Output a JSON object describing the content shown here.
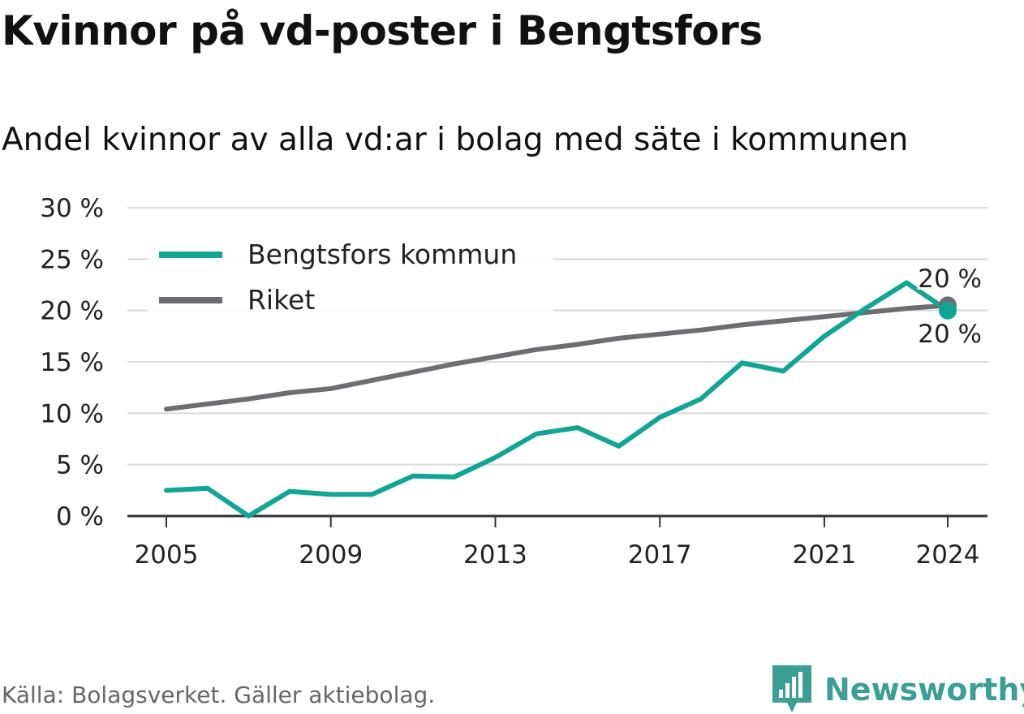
{
  "title": "Kvinnor på vd-poster i Bengtsfors",
  "subtitle": "Andel kvinnor av alla vd:ar i bolag med säte i kommunen",
  "source": "Källa: Bolagsverket. Gäller aktiebolag.",
  "brand": "Newsworthy",
  "colors": {
    "bengtsfors": "#11a596",
    "riket": "#6e6d72",
    "grid": "#d9d9d9",
    "axis": "#333333",
    "brand": "#3b9f96"
  },
  "chart_data": {
    "type": "line",
    "x": [
      2005,
      2006,
      2007,
      2008,
      2009,
      2010,
      2011,
      2012,
      2013,
      2014,
      2015,
      2016,
      2017,
      2018,
      2019,
      2020,
      2021,
      2022,
      2023,
      2024
    ],
    "series": [
      {
        "name": "Bengtsfors kommun",
        "color": "#11a596",
        "values": [
          2.5,
          2.7,
          0.0,
          2.4,
          2.1,
          2.1,
          3.9,
          3.8,
          5.7,
          8.0,
          8.6,
          6.8,
          9.6,
          11.4,
          14.9,
          14.1,
          17.5,
          20.2,
          22.7,
          20.0
        ]
      },
      {
        "name": "Riket",
        "color": "#6e6d72",
        "values": [
          10.4,
          10.9,
          11.4,
          12.0,
          12.4,
          13.2,
          14.0,
          14.8,
          15.5,
          16.2,
          16.7,
          17.3,
          17.7,
          18.1,
          18.6,
          19.0,
          19.4,
          19.8,
          20.2,
          20.5
        ]
      }
    ],
    "end_labels": [
      "20 %",
      "20 %"
    ],
    "y_ticks": [
      "0 %",
      "5 %",
      "10 %",
      "15 %",
      "20 %",
      "25 %",
      "30 %"
    ],
    "x_ticks": [
      "2005",
      "2009",
      "2013",
      "2017",
      "2021",
      "2024"
    ],
    "ylim": [
      0,
      30
    ],
    "xlim": [
      2005,
      2024
    ],
    "legend_position": "top-left",
    "grid": true
  }
}
